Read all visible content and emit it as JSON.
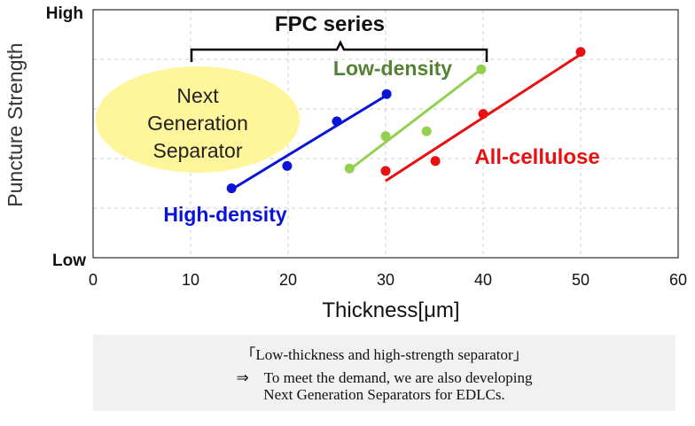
{
  "chart_data": {
    "type": "scatter",
    "xlabel": "Thickness[μm]",
    "ylabel": "Puncture Strength",
    "xlim": [
      0,
      60
    ],
    "x_ticks": [
      0,
      10,
      20,
      30,
      40,
      50,
      60
    ],
    "y_tick_labels": {
      "top": "High",
      "bottom": "Low"
    },
    "grid": true,
    "series": [
      {
        "name": "High-density",
        "color": "#0a14d6",
        "points": [
          [
            14.2,
            0.28
          ],
          [
            19.9,
            0.37
          ],
          [
            25.0,
            0.55
          ],
          [
            30.1,
            0.66
          ]
        ],
        "trend": [
          [
            14.2,
            0.275
          ],
          [
            30.1,
            0.655
          ]
        ]
      },
      {
        "name": "Low-density",
        "color": "#92d050",
        "points": [
          [
            26.3,
            0.36
          ],
          [
            30.0,
            0.49
          ],
          [
            34.2,
            0.51
          ],
          [
            39.8,
            0.76
          ]
        ],
        "trend": [
          [
            26.3,
            0.355
          ],
          [
            39.8,
            0.76
          ]
        ]
      },
      {
        "name": "All-cellulose",
        "color": "#e81010",
        "points": [
          [
            30.0,
            0.35
          ],
          [
            35.1,
            0.39
          ],
          [
            40.0,
            0.58
          ],
          [
            50.0,
            0.83
          ]
        ],
        "trend": [
          [
            30.0,
            0.31
          ],
          [
            50.0,
            0.82
          ]
        ]
      }
    ],
    "annotations": {
      "group_label": "FPC series",
      "next_gen_label": [
        "Next",
        "Generation",
        "Separator"
      ]
    }
  },
  "colors": {
    "high_density": "#0a14d6",
    "low_density_point": "#92d050",
    "low_density_label": "#548235",
    "all_cellulose": "#e81010",
    "ellipse": "#fff59b"
  },
  "caption": {
    "line1": "「Low-thickness and high-strength separator」",
    "line2": "⇒　To meet the demand, we are also developing",
    "line3": "Next Generation Separators for EDLCs."
  }
}
